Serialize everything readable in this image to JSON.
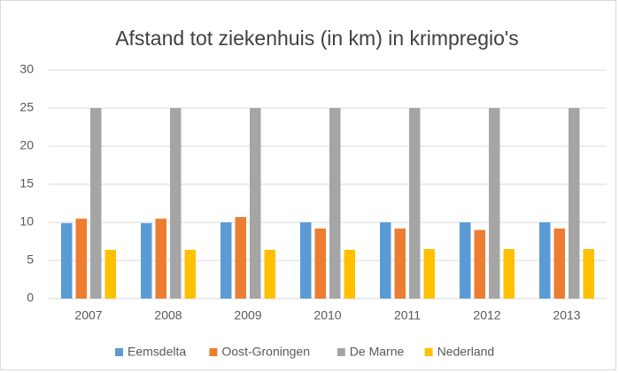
{
  "chart_data": {
    "type": "bar",
    "title": "Afstand tot ziekenhuis (in km) in krimpregio's",
    "categories": [
      "2007",
      "2008",
      "2009",
      "2010",
      "2011",
      "2012",
      "2013"
    ],
    "series": [
      {
        "name": "Eemsdelta",
        "color": "#5b9bd5",
        "values": [
          9.9,
          9.9,
          10.0,
          10.0,
          10.0,
          10.0,
          10.0
        ]
      },
      {
        "name": "Oost-Groningen",
        "color": "#ed7d31",
        "values": [
          10.5,
          10.5,
          10.7,
          9.2,
          9.2,
          9.0,
          9.2
        ]
      },
      {
        "name": "De Marne",
        "color": "#a5a5a5",
        "values": [
          25,
          25,
          25,
          25,
          25,
          25,
          25
        ]
      },
      {
        "name": "Nederland",
        "color": "#ffc000",
        "values": [
          6.4,
          6.4,
          6.4,
          6.4,
          6.5,
          6.5,
          6.5
        ]
      }
    ],
    "ylim": [
      0,
      30
    ],
    "yticks": [
      0,
      5,
      10,
      15,
      20,
      25,
      30
    ],
    "grid": true,
    "legend": "bottom"
  }
}
